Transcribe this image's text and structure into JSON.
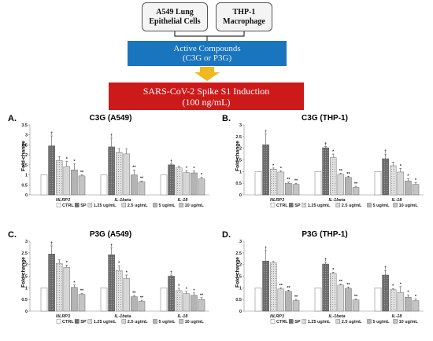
{
  "flow": {
    "a549": [
      "A549 Lung",
      "Epithelial Cells"
    ],
    "thp1": [
      "THP-1",
      "Macrophage"
    ],
    "compounds": [
      "Active Compounds",
      "(C3G or P3G)"
    ],
    "spike": [
      "SARS-CoV-2 Spike S1 Induction",
      "(100 ng/mL)"
    ],
    "colors": {
      "compounds_box": "#1a75bf",
      "spike_box": "#cc1a1a",
      "arrow": "#f2b820"
    }
  },
  "chart_data": [
    {
      "type": "bar",
      "panel": "A.",
      "title": "C3G (A549)",
      "ylabel": "Fold-change",
      "ylim": [
        0,
        3.5
      ],
      "yticks": [
        "0",
        "0.5",
        "1",
        "1.5",
        "2",
        "2.5",
        "3",
        "3.5"
      ],
      "categories": [
        "NLRP3",
        "IL-1beta",
        "IL-18"
      ],
      "series": [
        {
          "name": "CTRL",
          "values": [
            1.0,
            1.0,
            1.0
          ],
          "errors": [
            0,
            0,
            0
          ],
          "marks": [
            "",
            "",
            ""
          ]
        },
        {
          "name": "SP",
          "values": [
            2.45,
            2.4,
            1.5
          ],
          "errors": [
            0.5,
            0.45,
            0.05
          ],
          "marks": [
            "†",
            "†",
            "†"
          ]
        },
        {
          "name": "1.25 ug/mL",
          "values": [
            1.72,
            2.12,
            1.35
          ],
          "errors": [
            0.2,
            0.2,
            0.08
          ],
          "marks": [
            "",
            "",
            ""
          ]
        },
        {
          "name": "2.5 ug/mL",
          "values": [
            1.42,
            2.05,
            1.12
          ],
          "errors": [
            0.25,
            0.25,
            0.1
          ],
          "marks": [
            "*",
            "",
            "*"
          ]
        },
        {
          "name": "5 ug/mL",
          "values": [
            1.25,
            1.0,
            1.1
          ],
          "errors": [
            0.3,
            0.25,
            0.1
          ],
          "marks": [
            "*",
            "**",
            "*"
          ]
        },
        {
          "name": "10 ug/mL",
          "values": [
            0.95,
            0.65,
            0.8
          ],
          "errors": [
            0.05,
            0.05,
            0.08
          ],
          "marks": [
            "**",
            "**",
            "*"
          ]
        }
      ]
    },
    {
      "type": "bar",
      "panel": "B.",
      "title": "C3G (THP-1)",
      "ylabel": "Fold-change",
      "ylim": [
        0,
        3
      ],
      "yticks": [
        "0",
        "0.5",
        "1",
        "1.5",
        "2",
        "2.5",
        "3"
      ],
      "categories": [
        "NLRP3",
        "IL-1beta",
        "IL-18"
      ],
      "series": [
        {
          "name": "CTRL",
          "values": [
            1.0,
            1.0,
            1.0
          ],
          "errors": [
            0,
            0,
            0
          ],
          "marks": [
            "",
            "",
            ""
          ]
        },
        {
          "name": "SP",
          "values": [
            2.15,
            2.02,
            1.55
          ],
          "errors": [
            0.45,
            0.05,
            0.2
          ],
          "marks": [
            "†",
            "†",
            "†"
          ]
        },
        {
          "name": "1.25 ug/mL",
          "values": [
            1.1,
            1.6,
            1.25
          ],
          "errors": [
            0.05,
            0.15,
            0.15
          ],
          "marks": [
            "*",
            "*",
            ""
          ]
        },
        {
          "name": "2.5 ug/mL",
          "values": [
            0.98,
            0.88,
            0.98
          ],
          "errors": [
            0.05,
            0.05,
            0.15
          ],
          "marks": [
            "*",
            "**",
            "*"
          ]
        },
        {
          "name": "5 ug/mL",
          "values": [
            0.5,
            0.75,
            0.6
          ],
          "errors": [
            0.05,
            0.05,
            0.1
          ],
          "marks": [
            "**",
            "**",
            "*"
          ]
        },
        {
          "name": "10 ug/mL",
          "values": [
            0.45,
            0.32,
            0.45
          ],
          "errors": [
            0.05,
            0.05,
            0.08
          ],
          "marks": [
            "**",
            "**",
            "*"
          ]
        }
      ]
    },
    {
      "type": "bar",
      "panel": "C.",
      "title": "P3G (A549)",
      "ylabel": "Fold-change",
      "ylim": [
        0,
        3
      ],
      "yticks": [
        "0",
        "0.5",
        "1",
        "1.5",
        "2",
        "2.5",
        "3"
      ],
      "categories": [
        "NLRP3",
        "IL-1beta",
        "IL-18"
      ],
      "series": [
        {
          "name": "CTRL",
          "values": [
            1.0,
            1.0,
            1.0
          ],
          "errors": [
            0,
            0,
            0
          ],
          "marks": [
            "",
            "",
            ""
          ]
        },
        {
          "name": "SP",
          "values": [
            2.45,
            2.42,
            1.5
          ],
          "errors": [
            0.35,
            0.3,
            0.05
          ],
          "marks": [
            "†",
            "†",
            "†"
          ]
        },
        {
          "name": "1.25 ug/mL",
          "values": [
            2.05,
            1.75,
            0.88
          ],
          "errors": [
            0.15,
            0.2,
            0.1
          ],
          "marks": [
            "",
            "*",
            "*"
          ]
        },
        {
          "name": "2.5 ug/mL",
          "values": [
            1.88,
            1.4,
            0.75
          ],
          "errors": [
            0.1,
            0.15,
            0.1
          ],
          "marks": [
            "*",
            "*",
            "*"
          ]
        },
        {
          "name": "5 ug/mL",
          "values": [
            1.02,
            0.62,
            0.68
          ],
          "errors": [
            0.1,
            0.05,
            0.1
          ],
          "marks": [
            "*",
            "**",
            "*"
          ]
        },
        {
          "name": "10 ug/mL",
          "values": [
            0.72,
            0.42,
            0.5
          ],
          "errors": [
            0.05,
            0.05,
            0.08
          ],
          "marks": [
            "**",
            "**",
            "**"
          ]
        }
      ]
    },
    {
      "type": "bar",
      "panel": "D.",
      "title": "P3G (THP-1)",
      "ylabel": "Fold-change",
      "ylim": [
        0,
        3
      ],
      "yticks": [
        "0",
        "0.5",
        "1",
        "1.5",
        "2",
        "2.5",
        "3"
      ],
      "categories": [
        "NLRP3",
        "IL-1beta",
        "IL-18"
      ],
      "series": [
        {
          "name": "CTRL",
          "values": [
            1.0,
            1.0,
            1.0
          ],
          "errors": [
            0,
            0,
            0
          ],
          "marks": [
            "",
            "",
            ""
          ]
        },
        {
          "name": "SP",
          "values": [
            2.15,
            2.02,
            1.55
          ],
          "errors": [
            0.45,
            0.08,
            0.2
          ],
          "marks": [
            "†",
            "†",
            "†"
          ]
        },
        {
          "name": "1.25 ug/mL",
          "values": [
            2.08,
            1.62,
            0.92
          ],
          "errors": [
            0.05,
            0.05,
            0.05
          ],
          "marks": [
            "",
            "*",
            "*"
          ]
        },
        {
          "name": "2.5 ug/mL",
          "values": [
            0.95,
            1.12,
            0.8
          ],
          "errors": [
            0.05,
            0.05,
            0.25
          ],
          "marks": [
            "**",
            "**",
            "*"
          ]
        },
        {
          "name": "5 ug/mL",
          "values": [
            0.85,
            0.98,
            0.6
          ],
          "errors": [
            0.05,
            0.05,
            0.1
          ],
          "marks": [
            "**",
            "**",
            "*"
          ]
        },
        {
          "name": "10 ug/mL",
          "values": [
            0.45,
            0.48,
            0.45
          ],
          "errors": [
            0.05,
            0.05,
            0.08
          ],
          "marks": [
            "**",
            "**",
            "*"
          ]
        }
      ]
    }
  ]
}
